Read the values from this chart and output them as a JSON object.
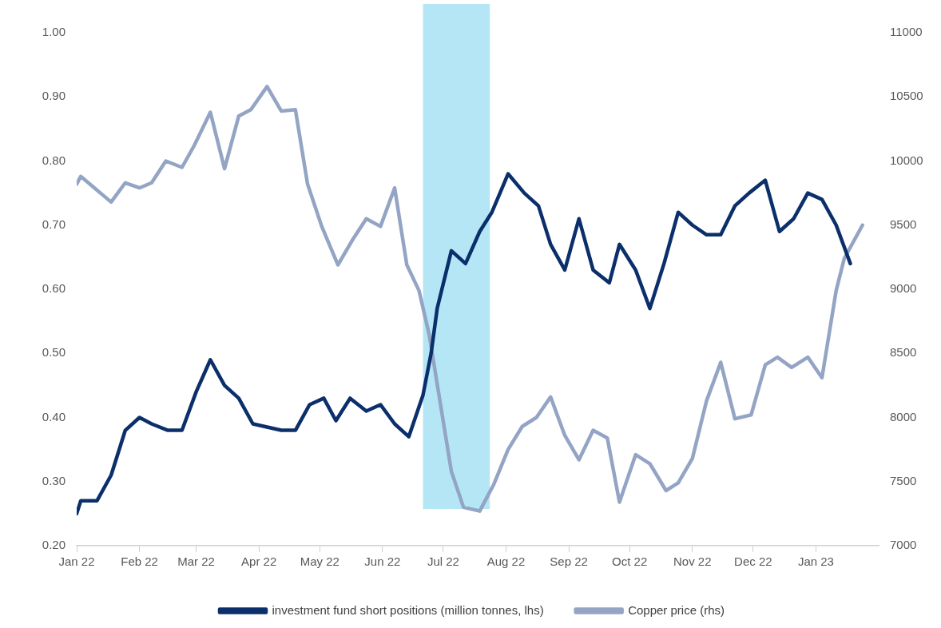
{
  "chart_data": {
    "type": "line",
    "xlim": [
      "2022-01-01",
      "2023-02-01"
    ],
    "xticks": [
      {
        "value": "2022-01-01",
        "label": "Jan 22"
      },
      {
        "value": "2022-02-01",
        "label": "Feb 22"
      },
      {
        "value": "2022-03-01",
        "label": "Mar 22"
      },
      {
        "value": "2022-04-01",
        "label": "Apr 22"
      },
      {
        "value": "2022-05-01",
        "label": "May 22"
      },
      {
        "value": "2022-06-01",
        "label": "Jun 22"
      },
      {
        "value": "2022-07-01",
        "label": "Jul 22"
      },
      {
        "value": "2022-08-01",
        "label": "Aug 22"
      },
      {
        "value": "2022-09-01",
        "label": "Sep 22"
      },
      {
        "value": "2022-10-01",
        "label": "Oct 22"
      },
      {
        "value": "2022-11-01",
        "label": "Nov 22"
      },
      {
        "value": "2022-12-01",
        "label": "Dec 22"
      },
      {
        "value": "2023-01-01",
        "label": "Jan 23"
      }
    ],
    "ylim": [
      0.2,
      1.0
    ],
    "yticks": [
      {
        "value": 0.2,
        "label": "0.20"
      },
      {
        "value": 0.3,
        "label": "0.30"
      },
      {
        "value": 0.4,
        "label": "0.40"
      },
      {
        "value": 0.5,
        "label": "0.50"
      },
      {
        "value": 0.6,
        "label": "0.60"
      },
      {
        "value": 0.7,
        "label": "0.70"
      },
      {
        "value": 0.8,
        "label": "0.80"
      },
      {
        "value": 0.9,
        "label": "0.90"
      },
      {
        "value": 1.0,
        "label": "1.00"
      }
    ],
    "y2lim": [
      7000,
      11000
    ],
    "y2ticks": [
      7000,
      7500,
      8000,
      8500,
      9000,
      9500,
      10000,
      10500,
      11000
    ],
    "grid": false,
    "legend": "bottom",
    "bands": [
      {
        "axis": "x",
        "from": "2022-06-21",
        "to": "2022-07-24",
        "color": "#b5e6f6"
      }
    ],
    "series": [
      {
        "name": "Copper price (rhs)",
        "color": "#93a4c4",
        "axis": "y2",
        "x": [
          "2022-01-01",
          "2022-01-03",
          "2022-01-18",
          "2022-01-25",
          "2022-02-01",
          "2022-02-07",
          "2022-02-14",
          "2022-02-22",
          "2022-02-28",
          "2022-03-08",
          "2022-03-15",
          "2022-03-22",
          "2022-03-28",
          "2022-04-05",
          "2022-04-12",
          "2022-04-19",
          "2022-04-25",
          "2022-05-02",
          "2022-05-10",
          "2022-05-17",
          "2022-05-24",
          "2022-05-31",
          "2022-06-07",
          "2022-06-13",
          "2022-06-19",
          "2022-06-24",
          "2022-07-05",
          "2022-07-11",
          "2022-07-19",
          "2022-07-26",
          "2022-08-02",
          "2022-08-09",
          "2022-08-16",
          "2022-08-23",
          "2022-08-30",
          "2022-09-06",
          "2022-09-13",
          "2022-09-20",
          "2022-09-26",
          "2022-10-04",
          "2022-10-11",
          "2022-10-19",
          "2022-10-25",
          "2022-11-01",
          "2022-11-08",
          "2022-11-15",
          "2022-11-22",
          "2022-11-30",
          "2022-12-07",
          "2022-12-13",
          "2022-12-20",
          "2022-12-28",
          "2023-01-04",
          "2023-01-11",
          "2023-01-15",
          "2023-01-24"
        ],
        "values": [
          9820,
          9880,
          9680,
          9830,
          9790,
          9830,
          10000,
          9950,
          10120,
          10380,
          9940,
          10350,
          10400,
          10580,
          10390,
          10400,
          9820,
          9490,
          9190,
          9380,
          9550,
          9490,
          9790,
          9190,
          8990,
          8650,
          7580,
          7300,
          7270,
          7480,
          7750,
          7930,
          8000,
          8160,
          7860,
          7670,
          7900,
          7840,
          7340,
          7710,
          7640,
          7430,
          7490,
          7680,
          8130,
          8430,
          7990,
          8020,
          8410,
          8470,
          8390,
          8470,
          8310,
          8990,
          9240,
          9500
        ]
      },
      {
        "name": "investment fund short positions (million tonnes, lhs)",
        "color": "#0b2f6b",
        "x": [
          "2022-01-01",
          "2022-01-03",
          "2022-01-11",
          "2022-01-18",
          "2022-01-25",
          "2022-02-01",
          "2022-02-07",
          "2022-02-15",
          "2022-02-22",
          "2022-03-01",
          "2022-03-08",
          "2022-03-15",
          "2022-03-22",
          "2022-03-29",
          "2022-04-05",
          "2022-04-12",
          "2022-04-19",
          "2022-04-26",
          "2022-05-03",
          "2022-05-09",
          "2022-05-16",
          "2022-05-24",
          "2022-05-31",
          "2022-06-07",
          "2022-06-14",
          "2022-06-21",
          "2022-06-25",
          "2022-06-28",
          "2022-07-05",
          "2022-07-12",
          "2022-07-19",
          "2022-07-25",
          "2022-08-02",
          "2022-08-10",
          "2022-08-17",
          "2022-08-23",
          "2022-08-30",
          "2022-09-06",
          "2022-09-13",
          "2022-09-21",
          "2022-09-26",
          "2022-10-04",
          "2022-10-11",
          "2022-10-18",
          "2022-10-25",
          "2022-11-01",
          "2022-11-08",
          "2022-11-15",
          "2022-11-22",
          "2022-11-29",
          "2022-12-07",
          "2022-12-14",
          "2022-12-21",
          "2022-12-28",
          "2023-01-04",
          "2023-01-11",
          "2023-01-18"
        ],
        "values": [
          0.25,
          0.27,
          0.27,
          0.31,
          0.38,
          0.4,
          0.39,
          0.38,
          0.38,
          0.44,
          0.49,
          0.45,
          0.43,
          0.39,
          0.385,
          0.38,
          0.38,
          0.42,
          0.43,
          0.395,
          0.43,
          0.41,
          0.42,
          0.39,
          0.37,
          0.435,
          0.5,
          0.57,
          0.66,
          0.64,
          0.69,
          0.72,
          0.78,
          0.75,
          0.73,
          0.67,
          0.63,
          0.71,
          0.63,
          0.61,
          0.67,
          0.63,
          0.57,
          0.64,
          0.72,
          0.7,
          0.685,
          0.685,
          0.73,
          0.75,
          0.77,
          0.69,
          0.71,
          0.75,
          0.74,
          0.7,
          0.64
        ]
      }
    ]
  }
}
